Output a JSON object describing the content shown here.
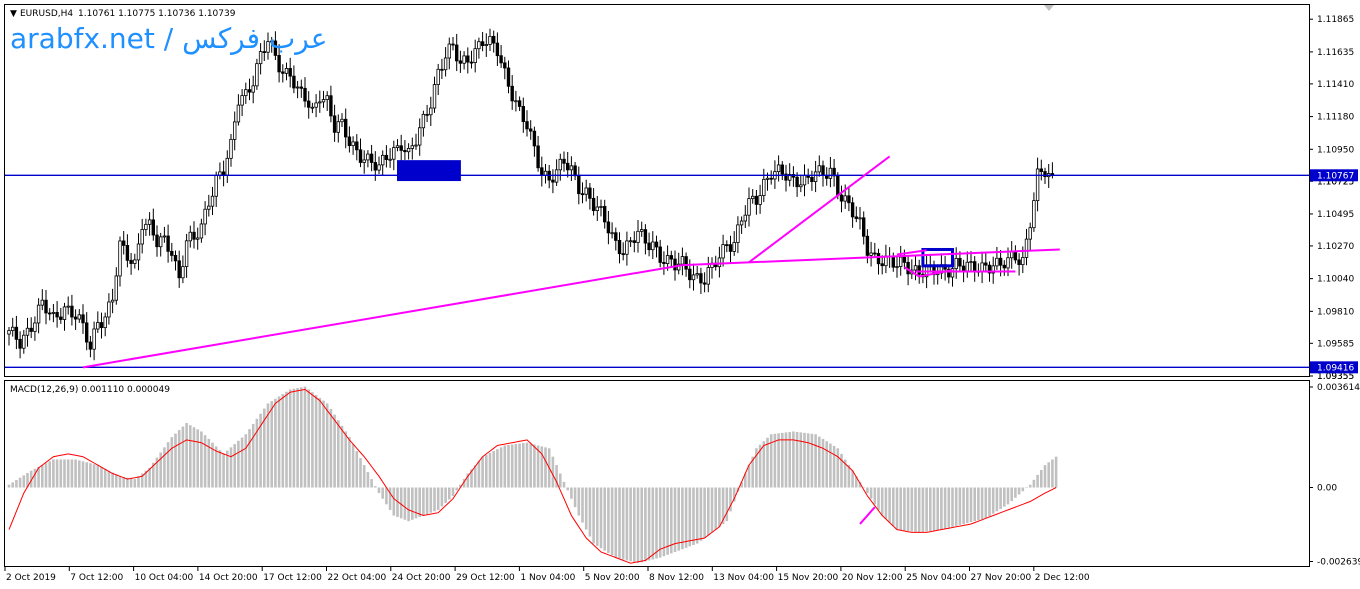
{
  "header": {
    "symbol": "EURUSD,H4",
    "ohlc": "1.10761 1.10775 1.10736 1.10739"
  },
  "watermark": "arabfx.net / عرب فركس",
  "colors": {
    "candle": "#000000",
    "hline": "#0000cd",
    "trend": "#ff00ff",
    "histogram": "#c0c0c0",
    "signal": "#ff0000",
    "price_label_bg": "#0000cd",
    "rect": "#0000cd"
  },
  "chart_data": [
    {
      "type": "candlestick",
      "title": "EURUSD,H4",
      "y_ticks": [
        "1.11865",
        "1.11635",
        "1.11410",
        "1.11180",
        "1.10950",
        "1.10725",
        "1.10495",
        "1.10270",
        "1.10040",
        "1.09810",
        "1.09585",
        "1.09355"
      ],
      "ylim": [
        1.09355,
        1.11965
      ],
      "x_ticks": [
        "2 Oct 2019",
        "7 Oct 12:00",
        "10 Oct 04:00",
        "14 Oct 20:00",
        "17 Oct 12:00",
        "22 Oct 04:00",
        "24 Oct 20:00",
        "29 Oct 12:00",
        "1 Nov 04:00",
        "5 Nov 20:00",
        "8 Nov 12:00",
        "13 Nov 04:00",
        "15 Nov 20:00",
        "20 Nov 12:00",
        "25 Nov 04:00",
        "27 Nov 20:00",
        "2 Dec 12:00"
      ],
      "close_path": [
        [
          0,
          1.0965
        ],
        [
          3,
          1.096
        ],
        [
          6,
          1.0972
        ],
        [
          9,
          1.0985
        ],
        [
          12,
          1.0975
        ],
        [
          15,
          1.0985
        ],
        [
          18,
          1.0978
        ],
        [
          20,
          1.0968
        ],
        [
          22,
          1.0955
        ],
        [
          24,
          1.0975
        ],
        [
          26,
          1.0978
        ],
        [
          28,
          1.099
        ],
        [
          30,
          1.1025
        ],
        [
          32,
          1.102
        ],
        [
          34,
          1.1015
        ],
        [
          36,
          1.1045
        ],
        [
          38,
          1.104
        ],
        [
          40,
          1.1028
        ],
        [
          42,
          1.103
        ],
        [
          44,
          1.1025
        ],
        [
          46,
          1.1005
        ],
        [
          48,
          1.103
        ],
        [
          50,
          1.103
        ],
        [
          52,
          1.104
        ],
        [
          54,
          1.106
        ],
        [
          56,
          1.1075
        ],
        [
          58,
          1.108
        ],
        [
          60,
          1.1095
        ],
        [
          62,
          1.113
        ],
        [
          64,
          1.1135
        ],
        [
          66,
          1.1145
        ],
        [
          68,
          1.116
        ],
        [
          70,
          1.117
        ],
        [
          72,
          1.116
        ],
        [
          74,
          1.115
        ],
        [
          76,
          1.115
        ],
        [
          78,
          1.1135
        ],
        [
          80,
          1.113
        ],
        [
          82,
          1.112
        ],
        [
          84,
          1.1135
        ],
        [
          86,
          1.113
        ],
        [
          88,
          1.111
        ],
        [
          90,
          1.111
        ],
        [
          92,
          1.11
        ],
        [
          94,
          1.1095
        ],
        [
          96,
          1.109
        ],
        [
          98,
          1.1085
        ],
        [
          100,
          1.108
        ],
        [
          102,
          1.109
        ],
        [
          104,
          1.1095
        ],
        [
          106,
          1.11
        ],
        [
          108,
          1.109
        ],
        [
          110,
          1.11
        ],
        [
          112,
          1.1115
        ],
        [
          114,
          1.113
        ],
        [
          116,
          1.115
        ],
        [
          118,
          1.116
        ],
        [
          120,
          1.1165
        ],
        [
          122,
          1.1155
        ],
        [
          124,
          1.116
        ],
        [
          126,
          1.1165
        ],
        [
          128,
          1.117
        ],
        [
          130,
          1.1168
        ],
        [
          132,
          1.1165
        ],
        [
          134,
          1.115
        ],
        [
          136,
          1.1135
        ],
        [
          138,
          1.112
        ],
        [
          140,
          1.111
        ],
        [
          142,
          1.1095
        ],
        [
          144,
          1.108
        ],
        [
          146,
          1.1075
        ],
        [
          148,
          1.1078
        ],
        [
          150,
          1.1085
        ],
        [
          152,
          1.108
        ],
        [
          154,
          1.107
        ],
        [
          156,
          1.1065
        ],
        [
          158,
          1.1055
        ],
        [
          160,
          1.1048
        ],
        [
          162,
          1.104
        ],
        [
          164,
          1.103
        ],
        [
          166,
          1.1025
        ],
        [
          168,
          1.1028
        ],
        [
          170,
          1.1035
        ],
        [
          172,
          1.103
        ],
        [
          174,
          1.103
        ],
        [
          176,
          1.102
        ],
        [
          178,
          1.1015
        ],
        [
          180,
          1.1012
        ],
        [
          182,
          1.1015
        ],
        [
          184,
          1.101
        ],
        [
          186,
          1.1005
        ],
        [
          188,
          1.1002
        ],
        [
          190,
          1.101
        ],
        [
          192,
          1.102
        ],
        [
          194,
          1.103
        ],
        [
          196,
          1.103
        ],
        [
          198,
          1.1045
        ],
        [
          200,
          1.1055
        ],
        [
          202,
          1.106
        ],
        [
          204,
          1.1072
        ],
        [
          206,
          1.108
        ],
        [
          208,
          1.1078
        ],
        [
          210,
          1.1075
        ],
        [
          212,
          1.1072
        ],
        [
          214,
          1.1075
        ],
        [
          216,
          1.1075
        ],
        [
          218,
          1.1078
        ],
        [
          220,
          1.1075
        ],
        [
          222,
          1.108
        ],
        [
          224,
          1.1068
        ],
        [
          226,
          1.106
        ],
        [
          228,
          1.105
        ],
        [
          230,
          1.104
        ],
        [
          232,
          1.1025
        ],
        [
          234,
          1.102
        ],
        [
          236,
          1.1018
        ],
        [
          238,
          1.1015
        ],
        [
          240,
          1.1012
        ],
        [
          242,
          1.1015
        ],
        [
          244,
          1.1012
        ],
        [
          246,
          1.101
        ],
        [
          248,
          1.1008
        ],
        [
          250,
          1.1008
        ],
        [
          252,
          1.101
        ],
        [
          254,
          1.1012
        ],
        [
          256,
          1.1015
        ],
        [
          258,
          1.1012
        ],
        [
          260,
          1.101
        ],
        [
          262,
          1.1012
        ],
        [
          264,
          1.1014
        ],
        [
          266,
          1.1015
        ],
        [
          268,
          1.1012
        ],
        [
          270,
          1.1015
        ],
        [
          272,
          1.102
        ],
        [
          274,
          1.1018
        ],
        [
          276,
          1.1045
        ],
        [
          278,
          1.1075
        ],
        [
          280,
          1.1078
        ],
        [
          282,
          1.1074
        ]
      ],
      "horizontal_lines": [
        {
          "price": 1.10767,
          "label": "1.10767"
        },
        {
          "price": 1.09416,
          "label": "1.09416"
        }
      ],
      "axis_labels_extra": [
        "1.10725",
        "1.09355"
      ],
      "trend_lines": [
        {
          "from": [
            20,
            1.09416
          ],
          "to": [
            182,
            1.10135
          ]
        },
        {
          "from": [
            182,
            1.10135
          ],
          "to": [
            284,
            1.10245
          ]
        },
        {
          "from": [
            200,
            1.10155
          ],
          "to": [
            238,
            1.109
          ]
        },
        {
          "from": [
            245,
            1.1009
          ],
          "to": [
            272,
            1.1009
          ]
        },
        {
          "from": [
            242,
            1.1012
          ],
          "to": [
            246,
            1.10055
          ]
        },
        {
          "from": [
            246,
            1.10055
          ],
          "to": [
            255,
            1.101
          ]
        },
        {
          "from": [
            240,
            1.1021
          ],
          "to": [
            248,
            1.1024
          ]
        }
      ],
      "rectangles": [
        {
          "x0": 105,
          "x1": 122,
          "y0": 1.1073,
          "y1": 1.1087,
          "filled": true
        },
        {
          "x0": 247,
          "x1": 255,
          "y0": 1.1013,
          "y1": 1.10245,
          "filled": false
        }
      ]
    },
    {
      "type": "macd",
      "title": "MACD(12,26,9) 0.001110 0.000049",
      "y_ticks": [
        "0.003614",
        "0.00",
        "-0.002639"
      ],
      "ylim": [
        -0.0028,
        0.0038
      ],
      "histogram_path": [
        [
          0,
          0.0001
        ],
        [
          6,
          0.0006
        ],
        [
          12,
          0.001
        ],
        [
          18,
          0.001
        ],
        [
          24,
          0.0008
        ],
        [
          30,
          0.0004
        ],
        [
          34,
          0.0003
        ],
        [
          38,
          0.0007
        ],
        [
          44,
          0.0018
        ],
        [
          48,
          0.0023
        ],
        [
          52,
          0.002
        ],
        [
          58,
          0.0012
        ],
        [
          64,
          0.0019
        ],
        [
          70,
          0.003
        ],
        [
          76,
          0.0035
        ],
        [
          80,
          0.0036
        ],
        [
          86,
          0.003
        ],
        [
          92,
          0.0018
        ],
        [
          96,
          0.0008
        ],
        [
          100,
          -0.0002
        ],
        [
          104,
          -0.001
        ],
        [
          108,
          -0.0012
        ],
        [
          112,
          -0.001
        ],
        [
          116,
          -0.0008
        ],
        [
          120,
          -0.0003
        ],
        [
          124,
          0.0005
        ],
        [
          128,
          0.0011
        ],
        [
          134,
          0.0015
        ],
        [
          140,
          0.0016
        ],
        [
          146,
          0.0014
        ],
        [
          150,
          0.0002
        ],
        [
          154,
          -0.001
        ],
        [
          158,
          -0.002
        ],
        [
          164,
          -0.0025
        ],
        [
          170,
          -0.0027
        ],
        [
          176,
          -0.0025
        ],
        [
          182,
          -0.0022
        ],
        [
          186,
          -0.002
        ],
        [
          190,
          -0.0016
        ],
        [
          194,
          -0.0012
        ],
        [
          198,
          0.0002
        ],
        [
          202,
          0.0014
        ],
        [
          206,
          0.0019
        ],
        [
          212,
          0.002
        ],
        [
          218,
          0.0019
        ],
        [
          224,
          0.0014
        ],
        [
          230,
          0.0002
        ],
        [
          236,
          -0.001
        ],
        [
          240,
          -0.0015
        ],
        [
          246,
          -0.0016
        ],
        [
          252,
          -0.0015
        ],
        [
          258,
          -0.0013
        ],
        [
          264,
          -0.0011
        ],
        [
          270,
          -0.0006
        ],
        [
          276,
          0.0001
        ],
        [
          280,
          0.0008
        ],
        [
          283,
          0.0011
        ]
      ],
      "signal_path": [
        [
          0,
          -0.0015
        ],
        [
          4,
          -0.0002
        ],
        [
          8,
          0.0007
        ],
        [
          12,
          0.0011
        ],
        [
          16,
          0.0012
        ],
        [
          20,
          0.0011
        ],
        [
          24,
          0.0008
        ],
        [
          28,
          0.0005
        ],
        [
          32,
          0.0003
        ],
        [
          36,
          0.0004
        ],
        [
          40,
          0.0009
        ],
        [
          44,
          0.0014
        ],
        [
          48,
          0.0017
        ],
        [
          52,
          0.0016
        ],
        [
          56,
          0.0013
        ],
        [
          60,
          0.0011
        ],
        [
          64,
          0.0014
        ],
        [
          68,
          0.0022
        ],
        [
          72,
          0.003
        ],
        [
          76,
          0.0034
        ],
        [
          80,
          0.0035
        ],
        [
          84,
          0.0031
        ],
        [
          88,
          0.0024
        ],
        [
          92,
          0.0017
        ],
        [
          96,
          0.0011
        ],
        [
          100,
          0.0004
        ],
        [
          104,
          -0.0004
        ],
        [
          108,
          -0.0008
        ],
        [
          112,
          -0.001
        ],
        [
          116,
          -0.0009
        ],
        [
          120,
          -0.0004
        ],
        [
          124,
          0.0004
        ],
        [
          128,
          0.0011
        ],
        [
          132,
          0.0015
        ],
        [
          136,
          0.0016
        ],
        [
          140,
          0.0017
        ],
        [
          144,
          0.0012
        ],
        [
          148,
          0.0002
        ],
        [
          152,
          -0.001
        ],
        [
          156,
          -0.0018
        ],
        [
          160,
          -0.0023
        ],
        [
          164,
          -0.0025
        ],
        [
          168,
          -0.0027
        ],
        [
          172,
          -0.0026
        ],
        [
          176,
          -0.0022
        ],
        [
          180,
          -0.002
        ],
        [
          184,
          -0.0019
        ],
        [
          188,
          -0.0018
        ],
        [
          192,
          -0.0014
        ],
        [
          196,
          -0.0004
        ],
        [
          200,
          0.0008
        ],
        [
          204,
          0.0015
        ],
        [
          208,
          0.0017
        ],
        [
          212,
          0.0017
        ],
        [
          216,
          0.0016
        ],
        [
          220,
          0.0014
        ],
        [
          224,
          0.0011
        ],
        [
          228,
          0.0006
        ],
        [
          232,
          -0.0003
        ],
        [
          236,
          -0.001
        ],
        [
          240,
          -0.0015
        ],
        [
          244,
          -0.0016
        ],
        [
          248,
          -0.0016
        ],
        [
          252,
          -0.0015
        ],
        [
          256,
          -0.0014
        ],
        [
          260,
          -0.0013
        ],
        [
          264,
          -0.0011
        ],
        [
          268,
          -0.0009
        ],
        [
          272,
          -0.0007
        ],
        [
          276,
          -0.0005
        ],
        [
          280,
          -0.0002
        ],
        [
          283,
          0.0
        ]
      ],
      "trend_lines": [
        {
          "from": [
            230,
            -0.0013
          ],
          "to": [
            234,
            -0.0007
          ]
        }
      ]
    }
  ]
}
